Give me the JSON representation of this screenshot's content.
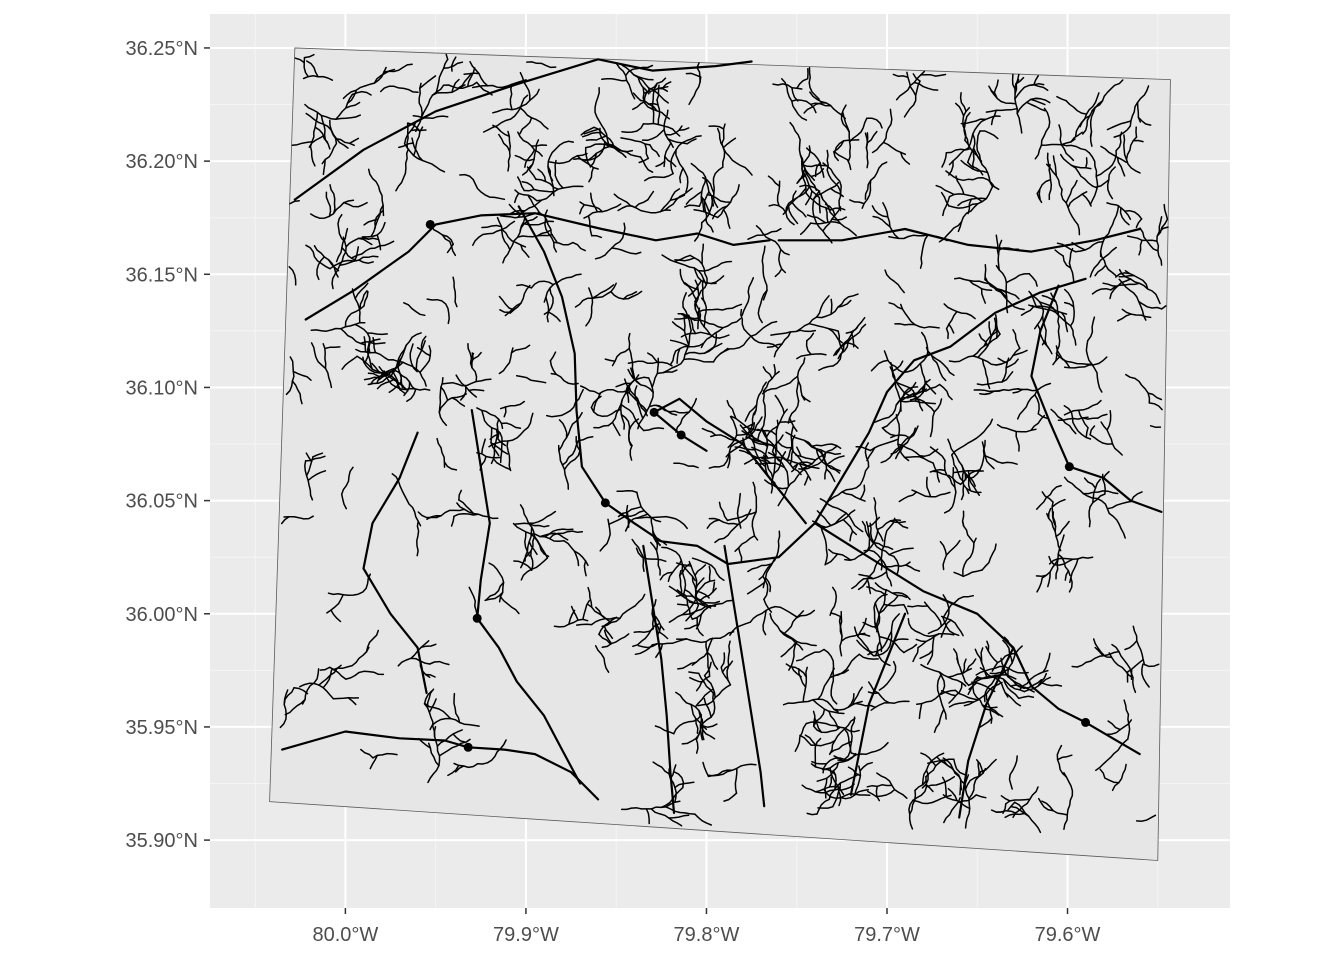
{
  "chart_data": {
    "type": "map",
    "xlabel": "",
    "ylabel": "",
    "grid": true,
    "xlim": [
      -80.075,
      -79.51
    ],
    "ylim": [
      35.87,
      36.265
    ],
    "x_ticks": [
      {
        "value": -80.0,
        "label": "80.0°W"
      },
      {
        "value": -79.9,
        "label": "79.9°W"
      },
      {
        "value": -79.8,
        "label": "79.8°W"
      },
      {
        "value": -79.7,
        "label": "79.7°W"
      },
      {
        "value": -79.6,
        "label": "79.6°W"
      }
    ],
    "y_ticks": [
      {
        "value": 36.25,
        "label": "36.25°N"
      },
      {
        "value": 36.2,
        "label": "36.20°N"
      },
      {
        "value": 36.15,
        "label": "36.15°N"
      },
      {
        "value": 36.1,
        "label": "36.10°N"
      },
      {
        "value": 36.05,
        "label": "36.05°N"
      },
      {
        "value": 36.0,
        "label": "36.00°N"
      },
      {
        "value": 35.95,
        "label": "35.95°N"
      },
      {
        "value": 35.9,
        "label": "35.90°N"
      }
    ],
    "boundary": [
      [
        -80.028,
        36.25
      ],
      [
        -79.543,
        36.236
      ],
      [
        -79.55,
        35.891
      ],
      [
        -80.042,
        35.917
      ]
    ],
    "points": [
      {
        "lon": -79.953,
        "lat": 36.172
      },
      {
        "lon": -79.829,
        "lat": 36.089
      },
      {
        "lon": -79.814,
        "lat": 36.079
      },
      {
        "lon": -79.856,
        "lat": 36.049
      },
      {
        "lon": -79.599,
        "lat": 36.065
      },
      {
        "lon": -79.927,
        "lat": 35.998
      },
      {
        "lon": -79.932,
        "lat": 35.941
      },
      {
        "lon": -79.59,
        "lat": 35.952
      }
    ],
    "main_streams": [
      [
        [
          -80.028,
          36.183
        ],
        [
          -79.99,
          36.205
        ],
        [
          -79.95,
          36.222
        ],
        [
          -79.905,
          36.234
        ],
        [
          -79.86,
          36.245
        ],
        [
          -79.83,
          36.24
        ],
        [
          -79.795,
          36.242
        ],
        [
          -79.775,
          36.244
        ]
      ],
      [
        [
          -80.022,
          36.13
        ],
        [
          -79.995,
          36.143
        ],
        [
          -79.965,
          36.16
        ],
        [
          -79.95,
          36.172
        ],
        [
          -79.925,
          36.176
        ],
        [
          -79.895,
          36.177
        ],
        [
          -79.858,
          36.17
        ],
        [
          -79.828,
          36.165
        ],
        [
          -79.805,
          36.168
        ],
        [
          -79.785,
          36.163
        ],
        [
          -79.765,
          36.165
        ]
      ],
      [
        [
          -79.76,
          36.165
        ],
        [
          -79.725,
          36.165
        ],
        [
          -79.69,
          36.17
        ],
        [
          -79.655,
          36.163
        ],
        [
          -79.62,
          36.16
        ],
        [
          -79.585,
          36.165
        ],
        [
          -79.56,
          36.17
        ]
      ],
      [
        [
          -79.904,
          36.18
        ],
        [
          -79.89,
          36.16
        ],
        [
          -79.88,
          36.14
        ],
        [
          -79.873,
          36.115
        ],
        [
          -79.872,
          36.09
        ],
        [
          -79.869,
          36.065
        ],
        [
          -79.856,
          36.049
        ],
        [
          -79.84,
          36.04
        ],
        [
          -79.825,
          36.032
        ],
        [
          -79.805,
          36.03
        ],
        [
          -79.788,
          36.022
        ],
        [
          -79.76,
          36.025
        ],
        [
          -79.74,
          36.04
        ],
        [
          -79.725,
          36.06
        ],
        [
          -79.71,
          36.08
        ],
        [
          -79.7,
          36.098
        ],
        [
          -79.685,
          36.112
        ],
        [
          -79.665,
          36.118
        ],
        [
          -79.64,
          36.133
        ],
        [
          -79.615,
          36.142
        ],
        [
          -79.59,
          36.148
        ]
      ],
      [
        [
          -79.745,
          36.04
        ],
        [
          -79.765,
          36.06
        ],
        [
          -79.78,
          36.075
        ],
        [
          -79.8,
          36.085
        ],
        [
          -79.815,
          36.095
        ],
        [
          -79.829,
          36.089
        ],
        [
          -79.814,
          36.079
        ],
        [
          -79.8,
          36.072
        ]
      ],
      [
        [
          -79.74,
          36.04
        ],
        [
          -79.72,
          36.03
        ],
        [
          -79.7,
          36.02
        ],
        [
          -79.68,
          36.01
        ],
        [
          -79.65,
          36.0
        ],
        [
          -79.63,
          35.985
        ],
        [
          -79.62,
          35.968
        ],
        [
          -79.605,
          35.958
        ],
        [
          -79.59,
          35.952
        ],
        [
          -79.575,
          35.945
        ],
        [
          -79.56,
          35.938
        ]
      ],
      [
        [
          -79.599,
          36.065
        ],
        [
          -79.61,
          36.085
        ],
        [
          -79.62,
          36.105
        ],
        [
          -79.615,
          36.125
        ],
        [
          -79.605,
          36.145
        ]
      ],
      [
        [
          -79.599,
          36.065
        ],
        [
          -79.58,
          36.06
        ],
        [
          -79.565,
          36.05
        ],
        [
          -79.548,
          36.045
        ]
      ],
      [
        [
          -80.035,
          35.94
        ],
        [
          -80.0,
          35.948
        ],
        [
          -79.97,
          35.945
        ],
        [
          -79.945,
          35.944
        ],
        [
          -79.932,
          35.941
        ],
        [
          -79.912,
          35.94
        ],
        [
          -79.895,
          35.938
        ],
        [
          -79.875,
          35.93
        ],
        [
          -79.86,
          35.918
        ]
      ],
      [
        [
          -79.927,
          35.998
        ],
        [
          -79.915,
          35.985
        ],
        [
          -79.905,
          35.97
        ],
        [
          -79.89,
          35.955
        ],
        [
          -79.88,
          35.94
        ],
        [
          -79.87,
          35.925
        ]
      ],
      [
        [
          -79.96,
          36.08
        ],
        [
          -79.97,
          36.06
        ],
        [
          -79.985,
          36.04
        ],
        [
          -79.99,
          36.02
        ],
        [
          -79.975,
          36.0
        ],
        [
          -79.96,
          35.985
        ],
        [
          -79.955,
          35.965
        ]
      ],
      [
        [
          -79.93,
          36.09
        ],
        [
          -79.925,
          36.065
        ],
        [
          -79.92,
          36.04
        ],
        [
          -79.925,
          36.015
        ],
        [
          -79.927,
          35.998
        ]
      ],
      [
        [
          -79.835,
          36.03
        ],
        [
          -79.83,
          36.005
        ],
        [
          -79.825,
          35.98
        ],
        [
          -79.822,
          35.955
        ],
        [
          -79.82,
          35.93
        ],
        [
          -79.818,
          35.912
        ]
      ],
      [
        [
          -79.79,
          36.03
        ],
        [
          -79.785,
          36.005
        ],
        [
          -79.78,
          35.98
        ],
        [
          -79.775,
          35.955
        ],
        [
          -79.77,
          35.93
        ],
        [
          -79.768,
          35.915
        ]
      ],
      [
        [
          -79.69,
          36.0
        ],
        [
          -79.7,
          35.98
        ],
        [
          -79.71,
          35.96
        ],
        [
          -79.715,
          35.94
        ],
        [
          -79.72,
          35.92
        ]
      ],
      [
        [
          -79.63,
          35.985
        ],
        [
          -79.645,
          35.96
        ],
        [
          -79.655,
          35.935
        ],
        [
          -79.66,
          35.91
        ]
      ]
    ]
  }
}
